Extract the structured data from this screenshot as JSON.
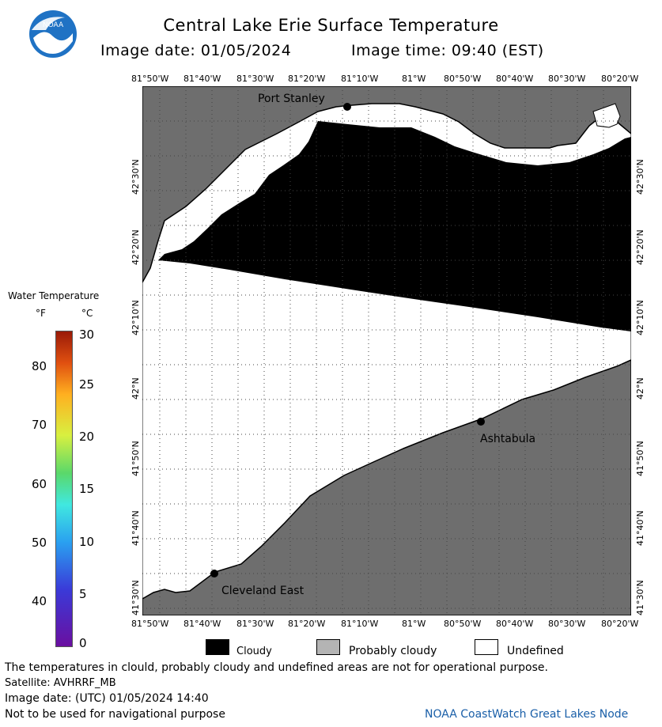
{
  "header": {
    "title": "Central Lake Erie Surface Temperature",
    "image_date": "Image date: 01/05/2024",
    "image_time": "Image time: 09:40 (EST)",
    "logo_text": "NOAA"
  },
  "axes": {
    "lon_top": [
      "81°50'W",
      "81°40'W",
      "81°30'W",
      "81°20'W",
      "81°10'W",
      "81°W",
      "80°50'W",
      "80°40'W",
      "80°30'W",
      "80°20'W"
    ],
    "lon_bottom": [
      "81°50'W",
      "81°40'W",
      "81°30'W",
      "81°20'W",
      "81°10'W",
      "81°W",
      "80°50'W",
      "80°40'W",
      "80°30'W",
      "80°20'W"
    ],
    "lat_left": [
      "42°30'N",
      "42°20'N",
      "42°10'N",
      "42°N",
      "41°50'N",
      "41°40'N",
      "41°30'N"
    ],
    "lat_right": [
      "42°30'N",
      "42°20'N",
      "42°10'N",
      "42°N",
      "41°50'N",
      "41°40'N",
      "41°30'N"
    ]
  },
  "places": {
    "port_stanley": "Port Stanley",
    "ashtabula": "Ashtabula",
    "cleveland_east": "Cleveland East"
  },
  "colorbar": {
    "title": "Water Temperature",
    "unit_f": "°F",
    "unit_c": "°C",
    "f_labels": [
      "80",
      "70",
      "60",
      "50",
      "40"
    ],
    "c_labels": [
      "30",
      "25",
      "20",
      "15",
      "10",
      "5",
      "0"
    ]
  },
  "legend": {
    "cloudy": "Cloudy",
    "probably_cloudy": "Probably cloudy",
    "undefined": "Undefined",
    "colors": {
      "cloudy": "#000000",
      "probably_cloudy": "#b4b4b4",
      "undefined": "#ffffff",
      "land": "#6e6e6e"
    }
  },
  "footer": {
    "disclaimer": "The temperatures in clould, probably cloudy and undefined areas are not for operational purpose.",
    "satellite": "Satellite: AVHRRF_MB",
    "utc_date": "Image date: (UTC) 01/05/2024  14:40",
    "nav_warning": "Not to be used for navigational purpose",
    "brand": "NOAA CoastWatch Great Lakes Node"
  }
}
